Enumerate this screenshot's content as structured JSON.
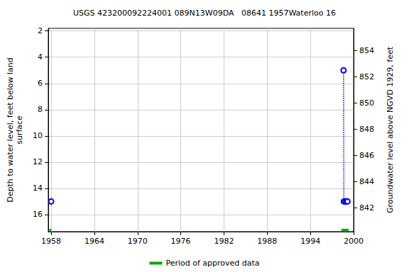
{
  "chart_data": {
    "type": "line",
    "title": "USGS 423200092224001 089N13W09DA   08641 1957Waterloo 16",
    "y_label": "Depth to water level, feet below land\nsurface",
    "y2_label": "Groundwater level above NGVD 1929, feet",
    "x": [
      1958.0,
      1978.0,
      1998.6,
      1998.65,
      1998.8,
      1999.0,
      1999.15
    ],
    "series": [
      {
        "color": "#0000ff",
        "marker": "circle",
        "line_style": "dotted",
        "values": [
          15,
          null,
          5,
          15,
          15,
          15,
          15
        ]
      }
    ],
    "approved_periods": {
      "name": "Period of approved data",
      "color": "#00aa00",
      "ranges": [
        [
          1957.75,
          1958.0
        ],
        [
          1998.3,
          1999.3
        ]
      ]
    },
    "xlim": [
      1957.6,
      2000
    ],
    "xticks": [
      1958,
      1964,
      1970,
      1976,
      1982,
      1988,
      1994,
      2000
    ],
    "ylim": [
      17.3,
      1.8
    ],
    "yticks": [
      2,
      4,
      6,
      8,
      10,
      12,
      14,
      16
    ],
    "y2lim": [
      840.2,
      855.7
    ],
    "y2ticks": [
      842,
      844,
      846,
      848,
      850,
      852,
      854
    ],
    "grid": true,
    "legend": "bottom"
  }
}
